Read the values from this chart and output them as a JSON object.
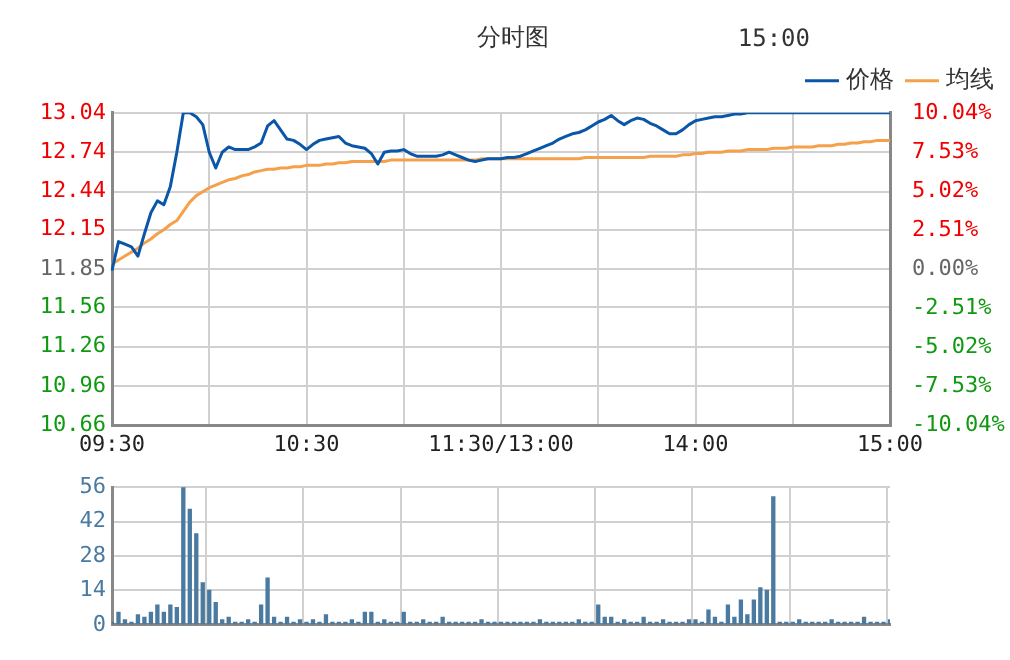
{
  "chart_data": [
    {
      "type": "line",
      "title": "分时图",
      "legend": "top",
      "grid": true,
      "annotations": [
        "15:00"
      ],
      "categories": [
        "09:30",
        null,
        null,
        null,
        null,
        null,
        null,
        null,
        null,
        null,
        null,
        null,
        null,
        null,
        null,
        null,
        null,
        null,
        null,
        null,
        null,
        null,
        null,
        null,
        null,
        null,
        null,
        null,
        null,
        null,
        "10:30",
        null,
        null,
        null,
        null,
        null,
        null,
        null,
        null,
        null,
        null,
        null,
        null,
        null,
        null,
        null,
        null,
        null,
        null,
        null,
        null,
        null,
        null,
        null,
        null,
        null,
        null,
        null,
        null,
        null,
        "11:30/13:00",
        null,
        null,
        null,
        null,
        null,
        null,
        null,
        null,
        null,
        null,
        null,
        null,
        null,
        null,
        null,
        null,
        null,
        null,
        null,
        null,
        null,
        null,
        null,
        null,
        null,
        null,
        null,
        null,
        null,
        "14:00",
        null,
        null,
        null,
        null,
        null,
        null,
        null,
        null,
        null,
        null,
        null,
        null,
        null,
        null,
        null,
        null,
        null,
        null,
        null,
        null,
        null,
        null,
        null,
        null,
        null,
        null,
        null,
        null,
        null,
        "15:00"
      ],
      "ylim": [
        10.66,
        13.04
      ],
      "yticks": [
        10.66,
        10.96,
        11.26,
        11.56,
        11.85,
        12.15,
        12.44,
        12.74,
        13.04
      ],
      "y2lim": [
        -10.04,
        10.04
      ],
      "y2ticks": [
        {
          "value": -10.04,
          "label": "-10.04%"
        },
        {
          "value": -7.53,
          "label": "-7.53%"
        },
        {
          "value": -5.02,
          "label": "-5.02%"
        },
        {
          "value": -2.51,
          "label": "-2.51%"
        },
        {
          "value": 0,
          "label": "0.00%"
        },
        {
          "value": 2.51,
          "label": "2.51%"
        },
        {
          "value": 5.02,
          "label": "5.02%"
        },
        {
          "value": 7.53,
          "label": "7.53%"
        },
        {
          "value": 10.04,
          "label": "10.04%"
        }
      ],
      "series": [
        {
          "name": "价格",
          "color": "#0a56a8",
          "values": [
            11.84,
            12.06,
            12.04,
            12.02,
            11.95,
            12.12,
            12.28,
            12.37,
            12.34,
            12.48,
            12.74,
            13.04,
            13.04,
            13.01,
            12.95,
            12.74,
            12.62,
            12.74,
            12.78,
            12.76,
            12.76,
            12.76,
            12.78,
            12.81,
            12.94,
            12.98,
            12.91,
            12.84,
            12.83,
            12.8,
            12.76,
            12.8,
            12.83,
            12.84,
            12.85,
            12.86,
            12.81,
            12.79,
            12.78,
            12.77,
            12.73,
            12.65,
            12.74,
            12.75,
            12.75,
            12.76,
            12.73,
            12.71,
            12.71,
            12.71,
            12.71,
            12.72,
            12.74,
            12.72,
            12.7,
            12.68,
            12.67,
            12.68,
            12.69,
            12.69,
            12.69,
            12.7,
            12.7,
            12.71,
            12.73,
            12.75,
            12.77,
            12.79,
            12.81,
            12.84,
            12.86,
            12.88,
            12.89,
            12.91,
            12.94,
            12.97,
            12.99,
            13.02,
            12.98,
            12.95,
            12.98,
            13.0,
            12.99,
            12.96,
            12.94,
            12.91,
            12.88,
            12.88,
            12.91,
            12.95,
            12.98,
            12.99,
            13.0,
            13.01,
            13.01,
            13.02,
            13.03,
            13.03,
            13.04,
            13.04,
            13.04,
            13.04,
            13.04,
            13.04,
            13.04,
            13.04,
            13.04,
            13.04,
            13.04,
            13.04,
            13.04,
            13.04,
            13.04,
            13.04,
            13.04,
            13.04,
            13.04,
            13.04,
            13.04,
            13.04,
            13.04
          ]
        },
        {
          "name": "均线",
          "color": "#f5a04a",
          "values": [
            11.89,
            11.92,
            11.95,
            11.98,
            12.01,
            12.05,
            12.08,
            12.12,
            12.15,
            12.19,
            12.22,
            12.29,
            12.36,
            12.41,
            12.44,
            12.47,
            12.49,
            12.51,
            12.53,
            12.54,
            12.56,
            12.57,
            12.59,
            12.6,
            12.61,
            12.61,
            12.62,
            12.62,
            12.63,
            12.63,
            12.64,
            12.64,
            12.64,
            12.65,
            12.65,
            12.66,
            12.66,
            12.67,
            12.67,
            12.67,
            12.67,
            12.67,
            12.67,
            12.68,
            12.68,
            12.68,
            12.68,
            12.68,
            12.68,
            12.68,
            12.68,
            12.68,
            12.68,
            12.68,
            12.68,
            12.68,
            12.68,
            12.69,
            12.69,
            12.69,
            12.69,
            12.69,
            12.69,
            12.69,
            12.69,
            12.69,
            12.69,
            12.69,
            12.69,
            12.69,
            12.69,
            12.69,
            12.69,
            12.7,
            12.7,
            12.7,
            12.7,
            12.7,
            12.7,
            12.7,
            12.7,
            12.7,
            12.7,
            12.71,
            12.71,
            12.71,
            12.71,
            12.71,
            12.72,
            12.72,
            12.73,
            12.73,
            12.74,
            12.74,
            12.74,
            12.75,
            12.75,
            12.75,
            12.76,
            12.76,
            12.76,
            12.76,
            12.77,
            12.77,
            12.77,
            12.78,
            12.78,
            12.78,
            12.78,
            12.79,
            12.79,
            12.79,
            12.8,
            12.8,
            12.81,
            12.81,
            12.82,
            12.82,
            12.83,
            12.83,
            12.83
          ]
        }
      ]
    },
    {
      "type": "bar",
      "grid": true,
      "tick_labels": "y",
      "color": "#4a7aa0",
      "categories": [
        null,
        null,
        null,
        null,
        null,
        null,
        null,
        null,
        null,
        null,
        null,
        null,
        null,
        null,
        null,
        null,
        null,
        null,
        null,
        null,
        null,
        null,
        null,
        null,
        null,
        null,
        null,
        null,
        null,
        null,
        null,
        null,
        null,
        null,
        null,
        null,
        null,
        null,
        null,
        null,
        null,
        null,
        null,
        null,
        null,
        null,
        null,
        null,
        null,
        null,
        null,
        null,
        null,
        null,
        null,
        null,
        null,
        null,
        null,
        null,
        null,
        null,
        null,
        null,
        null,
        null,
        null,
        null,
        null,
        null,
        null,
        null,
        null,
        null,
        null,
        null,
        null,
        null,
        null,
        null,
        null,
        null,
        null,
        null,
        null,
        null,
        null,
        null,
        null,
        null,
        null,
        null,
        null,
        null,
        null,
        null,
        null,
        null,
        null,
        null,
        null,
        null,
        null,
        null,
        null,
        null,
        null,
        null,
        null,
        null,
        null,
        null,
        null,
        null,
        null,
        null,
        null,
        null,
        null,
        null,
        null
      ],
      "ylim": [
        0,
        56
      ],
      "yticks": [
        0,
        14,
        28,
        42,
        56
      ],
      "values": [
        1,
        5,
        2,
        1,
        4,
        3,
        5,
        8,
        5,
        8,
        7,
        56,
        47,
        37,
        17,
        14,
        9,
        2,
        3,
        1,
        1,
        2,
        1,
        8,
        19,
        3,
        1,
        3,
        1,
        2,
        1,
        2,
        1,
        4,
        1,
        1,
        1,
        2,
        1,
        5,
        5,
        1,
        2,
        1,
        1,
        5,
        1,
        1,
        2,
        1,
        1,
        3,
        1,
        1,
        1,
        1,
        1,
        2,
        1,
        1,
        1,
        1,
        1,
        1,
        1,
        1,
        2,
        1,
        1,
        1,
        1,
        1,
        2,
        1,
        1,
        8,
        3,
        3,
        1,
        2,
        1,
        1,
        3,
        1,
        1,
        2,
        1,
        1,
        1,
        2,
        2,
        1,
        6,
        3,
        1,
        8,
        3,
        10,
        4,
        10,
        15,
        14,
        52,
        1,
        1,
        1,
        2,
        1,
        1,
        1,
        1,
        2,
        1,
        1,
        1,
        1,
        3,
        1,
        1,
        1,
        2
      ]
    }
  ]
}
